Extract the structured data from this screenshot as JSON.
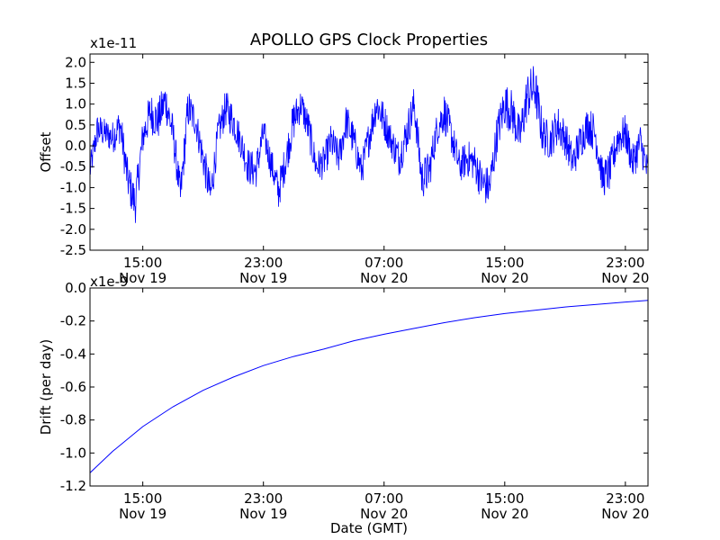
{
  "chart_data": [
    {
      "type": "line",
      "title": "APOLLO GPS Clock Properties",
      "xlabel": "",
      "ylabel": "Offset",
      "offset_text": "x1e-11",
      "ylim": [
        -2.5,
        2.2
      ],
      "yticks": [
        -2.5,
        -2.0,
        -1.5,
        -1.0,
        -0.5,
        0.0,
        0.5,
        1.0,
        1.5,
        2.0
      ],
      "ytick_labels": [
        "-2.5",
        "-2.0",
        "-1.5",
        "-1.0",
        "-0.5",
        "0.0",
        "0.5",
        "1.0",
        "1.5",
        "2.0"
      ],
      "xlim_hours": [
        11.5,
        48.5
      ],
      "xticks_hours": [
        15,
        23,
        31,
        39,
        47
      ],
      "xtick_labels": [
        {
          "time": "15:00",
          "date": "Nov 19"
        },
        {
          "time": "23:00",
          "date": "Nov 19"
        },
        {
          "time": "07:00",
          "date": "Nov 20"
        },
        {
          "time": "15:00",
          "date": "Nov 20"
        },
        {
          "time": "23:00",
          "date": "Nov 20"
        }
      ],
      "series": [
        {
          "name": "offset",
          "color": "#0000ff",
          "x_hours": [
            11.5,
            12.0,
            12.5,
            13.0,
            13.5,
            14.0,
            14.5,
            15.0,
            15.5,
            16.0,
            16.5,
            17.0,
            17.5,
            18.0,
            18.5,
            19.0,
            19.5,
            20.0,
            20.5,
            21.0,
            21.5,
            22.0,
            22.5,
            23.0,
            23.5,
            24.0,
            24.5,
            25.0,
            25.5,
            26.0,
            26.5,
            27.0,
            27.5,
            28.0,
            28.5,
            29.0,
            29.5,
            30.0,
            30.5,
            31.0,
            31.5,
            32.0,
            32.5,
            33.0,
            33.5,
            34.0,
            34.5,
            35.0,
            35.5,
            36.0,
            36.5,
            37.0,
            37.5,
            38.0,
            38.5,
            39.0,
            39.5,
            40.0,
            40.5,
            41.0,
            41.5,
            42.0,
            42.5,
            43.0,
            43.5,
            44.0,
            44.5,
            45.0,
            45.5,
            46.0,
            46.5,
            47.0,
            47.5,
            48.0,
            48.5
          ],
          "values": [
            -0.6,
            0.4,
            0.3,
            0.2,
            0.5,
            -0.8,
            -1.4,
            0.2,
            0.8,
            0.6,
            1.1,
            0.3,
            -1.2,
            0.9,
            0.6,
            -0.3,
            -1.2,
            0.3,
            0.9,
            0.6,
            0.1,
            -0.5,
            -0.6,
            0.3,
            -0.4,
            -1.1,
            -0.3,
            0.6,
            1.0,
            0.4,
            -0.5,
            -0.4,
            0.1,
            -0.3,
            0.6,
            0.1,
            -0.6,
            0.2,
            1.0,
            0.6,
            0.1,
            -0.3,
            0.3,
            1.0,
            -0.8,
            -0.6,
            0.4,
            0.8,
            0.2,
            -0.5,
            -0.3,
            -0.4,
            -0.9,
            -1.0,
            0.3,
            1.0,
            0.8,
            0.2,
            1.2,
            1.4,
            0.3,
            0.1,
            0.5,
            0.2,
            -0.4,
            0.1,
            0.5,
            0.3,
            -0.8,
            -0.6,
            0.2,
            0.3,
            -0.4,
            0.1,
            -0.7
          ],
          "amplitude": [
            0.35,
            0.4,
            0.35,
            0.4,
            0.45,
            0.5,
            0.5,
            0.45,
            0.5,
            0.5,
            0.5,
            0.45,
            0.45,
            0.5,
            0.4,
            0.45,
            0.5,
            0.4,
            0.45,
            0.45,
            0.4,
            0.45,
            0.45,
            0.4,
            0.4,
            0.45,
            0.45,
            0.5,
            0.4,
            0.45,
            0.4,
            0.4,
            0.45,
            0.4,
            0.45,
            0.45,
            0.4,
            0.45,
            0.45,
            0.45,
            0.4,
            0.45,
            0.5,
            0.45,
            0.5,
            0.5,
            0.4,
            0.5,
            0.45,
            0.4,
            0.45,
            0.45,
            0.5,
            0.5,
            0.5,
            0.55,
            0.55,
            0.5,
            0.6,
            0.6,
            0.5,
            0.45,
            0.5,
            0.45,
            0.45,
            0.45,
            0.45,
            0.5,
            0.45,
            0.5,
            0.45,
            0.45,
            0.45,
            0.45,
            0.45
          ]
        }
      ]
    },
    {
      "type": "line",
      "title": "",
      "xlabel": "Date (GMT)",
      "ylabel": "Drift (per day)",
      "offset_text": "x1e-9",
      "ylim": [
        -1.2,
        0.0
      ],
      "yticks": [
        -1.2,
        -1.0,
        -0.8,
        -0.6,
        -0.4,
        -0.2,
        0.0
      ],
      "ytick_labels": [
        "-1.2",
        "-1.0",
        "-0.8",
        "-0.6",
        "-0.4",
        "-0.2",
        "0.0"
      ],
      "xlim_hours": [
        11.5,
        48.5
      ],
      "xticks_hours": [
        15,
        23,
        31,
        39,
        47
      ],
      "xtick_labels": [
        {
          "time": "15:00",
          "date": "Nov 19"
        },
        {
          "time": "23:00",
          "date": "Nov 19"
        },
        {
          "time": "07:00",
          "date": "Nov 20"
        },
        {
          "time": "15:00",
          "date": "Nov 20"
        },
        {
          "time": "23:00",
          "date": "Nov 20"
        }
      ],
      "series": [
        {
          "name": "drift",
          "color": "#0000ff",
          "x_hours": [
            11.5,
            13.0,
            15.0,
            17.0,
            19.0,
            21.0,
            23.0,
            25.0,
            27.0,
            29.0,
            31.0,
            33.0,
            35.0,
            37.0,
            39.0,
            41.0,
            43.0,
            45.0,
            47.0,
            48.5
          ],
          "values": [
            -1.12,
            -0.99,
            -0.84,
            -0.72,
            -0.62,
            -0.54,
            -0.47,
            -0.415,
            -0.37,
            -0.32,
            -0.28,
            -0.245,
            -0.21,
            -0.18,
            -0.155,
            -0.135,
            -0.115,
            -0.1,
            -0.085,
            -0.075
          ]
        }
      ]
    }
  ]
}
